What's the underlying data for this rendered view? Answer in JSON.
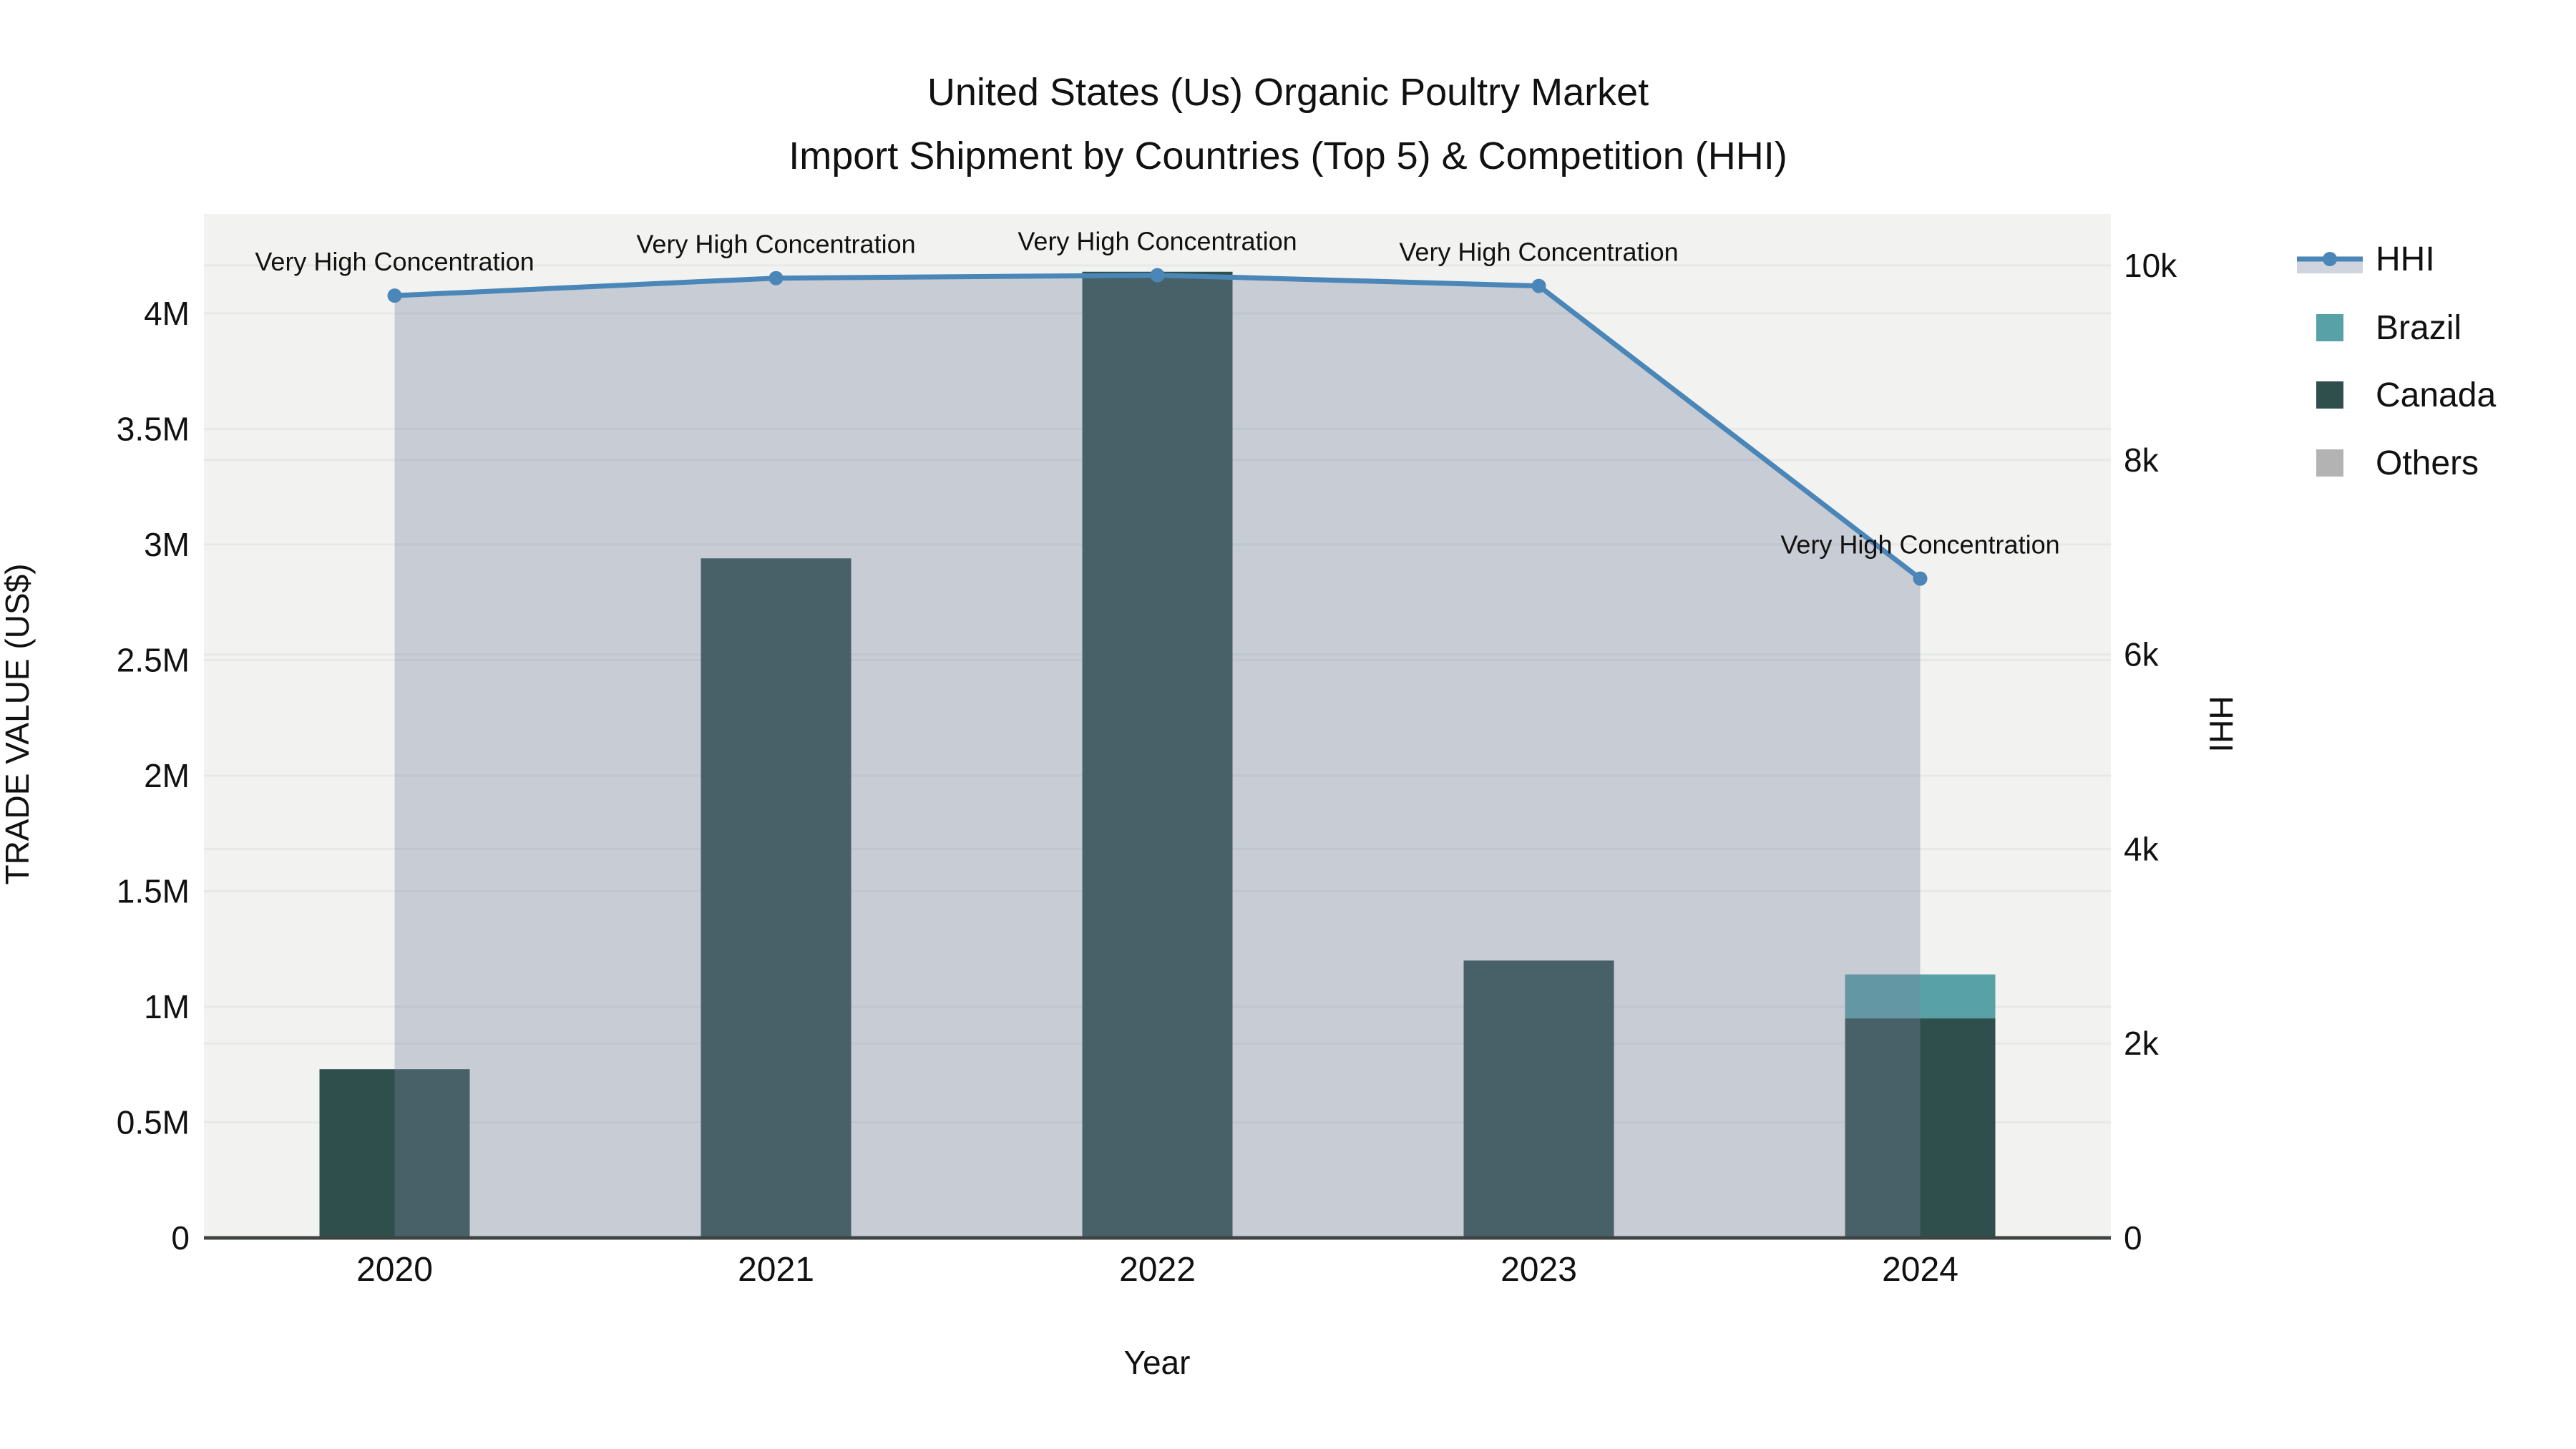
{
  "chart_data": {
    "type": "bar+line",
    "title_line1": "United States (Us) Organic Poultry Market",
    "title_line2": "Import Shipment by Countries (Top 5) & Competition (HHI)",
    "xlabel": "Year",
    "ylabel_left": "TRADE VALUE (US$)",
    "ylabel_right": "HHI",
    "categories": [
      "2020",
      "2021",
      "2022",
      "2023",
      "2024"
    ],
    "bar_series": [
      {
        "name": "Brazil",
        "color": "#58a1a6",
        "values": [
          0,
          0,
          0,
          0,
          190000
        ]
      },
      {
        "name": "Canada",
        "color": "#2e4f4c",
        "values": [
          730000,
          2940000,
          4180000,
          1200000,
          950000
        ]
      },
      {
        "name": "Others",
        "color": "#b3b3b3",
        "values": [
          0,
          0,
          0,
          0,
          0
        ]
      }
    ],
    "stack_order_bottom_up": [
      "Canada",
      "Brazil",
      "Others"
    ],
    "line_series": {
      "name": "HHI",
      "color": "#4a86b8",
      "area_fill": "rgba(120,133,160,0.35)",
      "values": [
        9690,
        9870,
        9900,
        9790,
        6780
      ]
    },
    "point_annotations": [
      "Very High Concentration",
      "Very High Concentration",
      "Very High Concentration",
      "Very High Concentration",
      "Very High Concentration"
    ],
    "axis_left": {
      "range": [
        0,
        4430000
      ],
      "ticks": [
        {
          "label": "0",
          "value": 0
        },
        {
          "label": "0.5M",
          "value": 500000
        },
        {
          "label": "1M",
          "value": 1000000
        },
        {
          "label": "1.5M",
          "value": 1500000
        },
        {
          "label": "2M",
          "value": 2000000
        },
        {
          "label": "2.5M",
          "value": 2500000
        },
        {
          "label": "3M",
          "value": 3000000
        },
        {
          "label": "3.5M",
          "value": 3500000
        },
        {
          "label": "4M",
          "value": 4000000
        }
      ]
    },
    "axis_right": {
      "range": [
        0,
        10530
      ],
      "ticks": [
        {
          "label": "0",
          "value": 0
        },
        {
          "label": "2k",
          "value": 2000
        },
        {
          "label": "4k",
          "value": 4000
        },
        {
          "label": "6k",
          "value": 6000
        },
        {
          "label": "8k",
          "value": 8000
        },
        {
          "label": "10k",
          "value": 10000
        }
      ]
    },
    "legend_position": "right",
    "grid": true,
    "legend": [
      {
        "label": "HHI",
        "symbol": "line+area",
        "color": "#4a86b8"
      },
      {
        "label": "Brazil",
        "symbol": "square",
        "color": "#58a1a6"
      },
      {
        "label": "Canada",
        "symbol": "square",
        "color": "#2e4f4c"
      },
      {
        "label": "Others",
        "symbol": "square",
        "color": "#b3b3b3"
      }
    ],
    "colors": {
      "plot_bg": "#f2f3f1",
      "grid": "#e7e9e8",
      "axis_line": "#3f4442",
      "text": "#111111"
    }
  }
}
